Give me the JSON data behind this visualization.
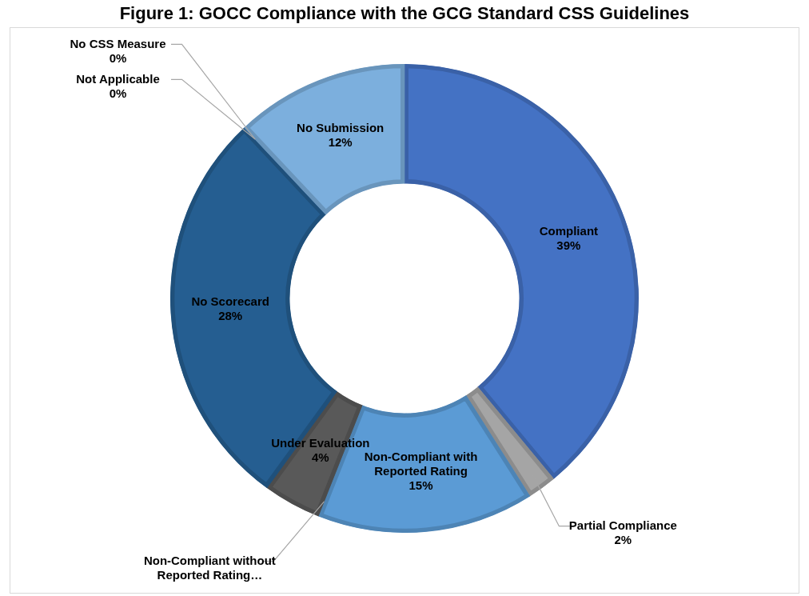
{
  "chart_data": {
    "type": "donut",
    "title": "Figure 1: GOCC Compliance with the GCG Standard CSS Guidelines",
    "categories": [
      "Compliant",
      "Partial Compliance",
      "Non-Compliant with Reported Rating",
      "Non-Compliant without Reported Rating…",
      "Under Evaluation",
      "No Scorecard",
      "Not Applicable",
      "No CSS Measure",
      "No Submission"
    ],
    "values": [
      39,
      2,
      15,
      0,
      4,
      28,
      0,
      0,
      12
    ],
    "value_labels": [
      "39%",
      "2%",
      "15%",
      null,
      "4%",
      "28%",
      "0%",
      "0%",
      "12%"
    ],
    "colors": [
      "#4472c4",
      "#a5a5a5",
      "#5b9bd5",
      "#264478",
      "#595959",
      "#255e91",
      "#9e480e",
      "#636363",
      "#7cafdd"
    ],
    "legend": false
  }
}
